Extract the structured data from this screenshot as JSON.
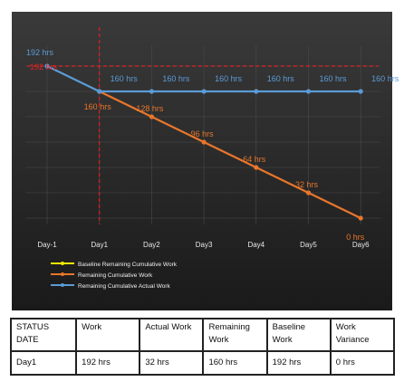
{
  "chart_data": {
    "type": "line",
    "categories": [
      "Day-1",
      "Day1",
      "Day2",
      "Day3",
      "Day4",
      "Day5",
      "Day6"
    ],
    "ylim": [
      0,
      200
    ],
    "series": [
      {
        "name": "Baseline Remaining Cumulative Work",
        "color": "#f2e600",
        "values": [
          192,
          192,
          192,
          192,
          192,
          192,
          192
        ]
      },
      {
        "name": "Remaining Cumulative Work",
        "color": "#e8762b",
        "values": [
          null,
          160,
          128,
          96,
          64,
          32,
          0
        ],
        "labels": [
          "",
          "160 hrs",
          "128 hrs",
          "96 hrs",
          "64 hrs",
          "32 hrs",
          "0 hrs"
        ]
      },
      {
        "name": "Remaining Cumulative Actual Work",
        "color": "#5b9bd5",
        "values": [
          192,
          160,
          160,
          160,
          160,
          160,
          160
        ],
        "labels": [
          "192 hrs",
          "160 hrs",
          "160 hrs",
          "160 hrs",
          "160 hrs",
          "160 hrs",
          "160 hrs"
        ]
      }
    ],
    "status_marker": {
      "category": "Day1",
      "color": "#e02020"
    },
    "baseline_label": "192 hrs",
    "legend_position": "bottom-left",
    "grid": true
  },
  "table": {
    "headers": [
      "STATUS DATE",
      "Work",
      "Actual Work",
      "Remaining Work",
      "Baseline Work",
      "Work Variance"
    ],
    "values": [
      "Day1",
      "192 hrs",
      "32 hrs",
      "160 hrs",
      "192 hrs",
      "0 hrs"
    ]
  }
}
